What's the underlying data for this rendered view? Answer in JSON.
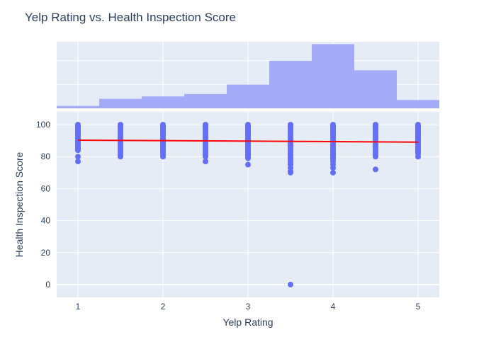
{
  "chart_data": {
    "type": "scatter",
    "title": "Yelp Rating vs. Health Inspection Score",
    "xlabel": "Yelp Rating",
    "ylabel": "Health Inspection Score",
    "xlim": [
      0.75,
      5.25
    ],
    "ylim": [
      -8,
      108
    ],
    "x_ticks": [
      1,
      2,
      3,
      4,
      5
    ],
    "y_ticks": [
      0,
      20,
      40,
      60,
      80,
      100
    ],
    "grid": true,
    "colors": {
      "plot_bg": "#e5ecf6",
      "grid": "#ffffff",
      "points": "#636efa",
      "histogram": "#a3abf9",
      "trendline": "#ff0000"
    },
    "scatter": {
      "x_values": [
        1,
        1.5,
        2,
        2.5,
        3,
        3.5,
        4,
        4.5,
        5
      ],
      "band_ranges": [
        {
          "x": 1,
          "min": 84,
          "max": 100
        },
        {
          "x": 1.5,
          "min": 80,
          "max": 100
        },
        {
          "x": 2,
          "min": 80,
          "max": 100
        },
        {
          "x": 2.5,
          "min": 80,
          "max": 100
        },
        {
          "x": 3,
          "min": 79,
          "max": 100
        },
        {
          "x": 3.5,
          "min": 76,
          "max": 100
        },
        {
          "x": 4,
          "min": 78,
          "max": 100
        },
        {
          "x": 4.5,
          "min": 80,
          "max": 100
        },
        {
          "x": 5,
          "min": 82,
          "max": 100
        }
      ],
      "outliers": [
        {
          "x": 1,
          "y": 77
        },
        {
          "x": 1,
          "y": 80
        },
        {
          "x": 2.5,
          "y": 77
        },
        {
          "x": 3,
          "y": 75
        },
        {
          "x": 3.5,
          "y": 75
        },
        {
          "x": 3.5,
          "y": 73
        },
        {
          "x": 3.5,
          "y": 71
        },
        {
          "x": 3.5,
          "y": 70
        },
        {
          "x": 3.5,
          "y": 0
        },
        {
          "x": 4,
          "y": 77
        },
        {
          "x": 4,
          "y": 75
        },
        {
          "x": 4,
          "y": 73
        },
        {
          "x": 4,
          "y": 70
        },
        {
          "x": 4.5,
          "y": 72
        },
        {
          "x": 5,
          "y": 80
        }
      ]
    },
    "trendline": {
      "x": [
        1,
        5
      ],
      "y": [
        90.3,
        89.1
      ]
    },
    "histogram": {
      "bin_edges": [
        0.75,
        1.25,
        1.75,
        2.25,
        2.75,
        3.25,
        3.75,
        4.25,
        4.75,
        5.25
      ],
      "counts": [
        1,
        4,
        5,
        6,
        10,
        20,
        27,
        16,
        3.5
      ]
    }
  }
}
